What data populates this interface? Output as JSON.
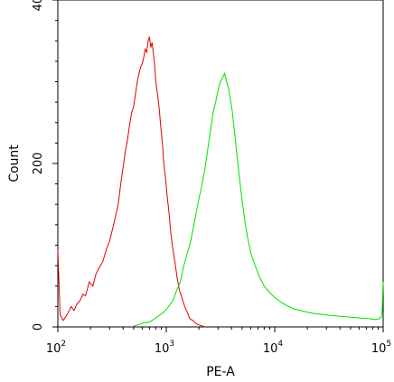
{
  "chart_data": {
    "type": "line",
    "title": "",
    "xlabel": "PE-A",
    "ylabel": "Count",
    "x_scale": "log",
    "xlim": [
      100,
      100000
    ],
    "ylim": [
      0,
      400
    ],
    "x_ticks": [
      {
        "value": 100,
        "base": "10",
        "exp": "2"
      },
      {
        "value": 1000,
        "base": "10",
        "exp": "3"
      },
      {
        "value": 10000,
        "base": "10",
        "exp": "4"
      },
      {
        "value": 100000,
        "base": "10",
        "exp": "5"
      }
    ],
    "y_ticks": [
      {
        "value": 0,
        "label": "0"
      },
      {
        "value": 200,
        "label": "200"
      },
      {
        "value": 400,
        "label": "400"
      }
    ],
    "grid": false,
    "legend": "none",
    "series": [
      {
        "color": "#dd0000",
        "x": [
          100,
          105,
          112,
          118,
          125,
          133,
          141,
          150,
          160,
          170,
          180,
          195,
          210,
          225,
          240,
          260,
          280,
          300,
          320,
          340,
          360,
          380,
          400,
          420,
          440,
          460,
          480,
          500,
          520,
          540,
          560,
          580,
          600,
          620,
          640,
          660,
          680,
          700,
          720,
          740,
          760,
          780,
          800,
          830,
          860,
          890,
          920,
          950,
          980,
          1020,
          1060,
          1100,
          1150,
          1200,
          1260,
          1320,
          1400,
          1480,
          1560,
          1650,
          1750,
          1850,
          1950,
          2050,
          2150,
          2300
        ],
        "y": [
          95,
          15,
          8,
          12,
          18,
          25,
          20,
          28,
          32,
          40,
          38,
          55,
          50,
          65,
          72,
          80,
          95,
          105,
          120,
          135,
          150,
          175,
          195,
          215,
          230,
          248,
          262,
          270,
          285,
          300,
          310,
          318,
          322,
          330,
          340,
          336,
          350,
          355,
          342,
          348,
          335,
          320,
          300,
          285,
          268,
          245,
          225,
          200,
          185,
          160,
          140,
          115,
          95,
          80,
          60,
          45,
          35,
          25,
          18,
          10,
          8,
          5,
          3,
          2,
          1,
          0
        ]
      },
      {
        "color": "#00e000",
        "x": [
          500,
          560,
          620,
          700,
          780,
          860,
          950,
          1050,
          1150,
          1250,
          1350,
          1450,
          1560,
          1680,
          1800,
          1950,
          2100,
          2250,
          2400,
          2550,
          2700,
          2850,
          3000,
          3150,
          3300,
          3450,
          3600,
          3750,
          3900,
          4050,
          4250,
          4450,
          4700,
          5000,
          5300,
          5700,
          6100,
          6600,
          7200,
          8000,
          9000,
          10000,
          11500,
          13000,
          15000,
          17500,
          20000,
          24000,
          28000,
          33000,
          40000,
          50000,
          60000,
          75000,
          85000,
          92000,
          96000,
          98000,
          100000
        ],
        "y": [
          1,
          3,
          5,
          6,
          10,
          14,
          18,
          25,
          32,
          45,
          55,
          75,
          90,
          105,
          125,
          150,
          170,
          190,
          215,
          240,
          262,
          275,
          290,
          300,
          305,
          310,
          300,
          292,
          278,
          265,
          240,
          215,
          185,
          155,
          130,
          105,
          88,
          75,
          62,
          50,
          42,
          36,
          30,
          26,
          22,
          20,
          18,
          16,
          15,
          14,
          13,
          12,
          11,
          10,
          9,
          10,
          12,
          20,
          55
        ]
      }
    ]
  }
}
